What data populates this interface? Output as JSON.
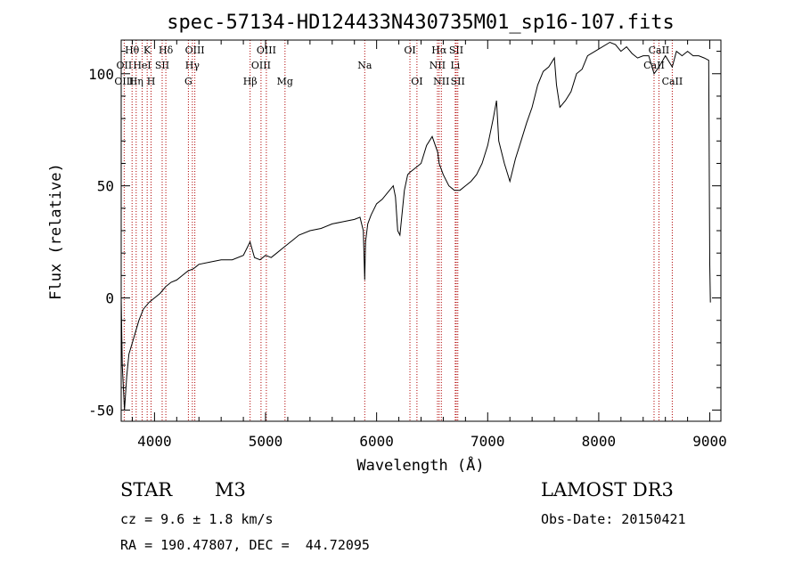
{
  "chart_data": {
    "type": "line",
    "title": "spec-57134-HD124433N430735M01_sp16-107.fits",
    "xlabel": "Wavelength (Å)",
    "ylabel": "Flux (relative)",
    "xlim": [
      3700,
      9100
    ],
    "ylim": [
      -55,
      115
    ],
    "x_ticks": [
      4000,
      5000,
      6000,
      7000,
      8000,
      9000
    ],
    "y_ticks": [
      -50,
      0,
      50,
      100
    ],
    "series": [
      {
        "name": "flux",
        "x": [
          3700,
          3710,
          3730,
          3750,
          3770,
          3800,
          3830,
          3860,
          3900,
          3950,
          4000,
          4050,
          4100,
          4150,
          4200,
          4250,
          4300,
          4350,
          4400,
          4500,
          4600,
          4700,
          4800,
          4860,
          4900,
          4950,
          5000,
          5050,
          5100,
          5150,
          5200,
          5250,
          5300,
          5400,
          5500,
          5600,
          5700,
          5800,
          5850,
          5880,
          5893,
          5900,
          5920,
          5950,
          6000,
          6050,
          6100,
          6150,
          6170,
          6190,
          6210,
          6250,
          6280,
          6300,
          6350,
          6400,
          6450,
          6500,
          6550,
          6563,
          6600,
          6650,
          6700,
          6750,
          6800,
          6850,
          6900,
          6950,
          7000,
          7050,
          7080,
          7100,
          7150,
          7200,
          7250,
          7300,
          7350,
          7400,
          7450,
          7500,
          7550,
          7600,
          7620,
          7650,
          7700,
          7750,
          7800,
          7850,
          7900,
          8000,
          8100,
          8150,
          8200,
          8250,
          8300,
          8350,
          8400,
          8450,
          8498,
          8542,
          8600,
          8662,
          8700,
          8750,
          8800,
          8850,
          8900,
          8950,
          8990,
          9000,
          9005
        ],
        "y": [
          0,
          -30,
          -50,
          -35,
          -25,
          -20,
          -15,
          -10,
          -5,
          -2,
          0,
          2,
          5,
          7,
          8,
          10,
          12,
          13,
          15,
          16,
          17,
          17,
          19,
          25,
          18,
          17,
          19,
          18,
          20,
          22,
          24,
          26,
          28,
          30,
          31,
          33,
          34,
          35,
          36,
          30,
          8,
          25,
          33,
          37,
          42,
          44,
          47,
          50,
          45,
          30,
          28,
          48,
          55,
          56,
          58,
          60,
          68,
          72,
          65,
          60,
          55,
          50,
          48,
          48,
          50,
          52,
          55,
          60,
          68,
          80,
          88,
          70,
          60,
          52,
          62,
          70,
          78,
          85,
          95,
          101,
          103,
          107,
          95,
          85,
          88,
          92,
          100,
          102,
          108,
          111,
          114,
          113,
          110,
          112,
          109,
          107,
          108,
          108,
          100,
          103,
          108,
          103,
          110,
          108,
          110,
          108,
          108,
          107,
          106,
          15,
          -2
        ]
      }
    ],
    "line_markers": [
      {
        "label": "Hθ",
        "wavelength": 3798,
        "row": 0
      },
      {
        "label": "OII",
        "wavelength": 3727,
        "row": 1
      },
      {
        "label": "OIII",
        "wavelength": 3727,
        "row": 2
      },
      {
        "label": "K",
        "wavelength": 3934,
        "row": 0
      },
      {
        "label": "HeI",
        "wavelength": 3889,
        "row": 1
      },
      {
        "label": "Hη",
        "wavelength": 3835,
        "row": 2
      },
      {
        "label": "SII",
        "wavelength": 4069,
        "row": 1
      },
      {
        "label": "H",
        "wavelength": 3969,
        "row": 2
      },
      {
        "label": "Hδ",
        "wavelength": 4102,
        "row": 0
      },
      {
        "label": "OIII",
        "wavelength": 4363,
        "row": 0
      },
      {
        "label": "Hγ",
        "wavelength": 4341,
        "row": 1
      },
      {
        "label": "G",
        "wavelength": 4305,
        "row": 2
      },
      {
        "label": "Hβ",
        "wavelength": 4861,
        "row": 2
      },
      {
        "label": "OIII",
        "wavelength": 5007,
        "row": 0
      },
      {
        "label": "OIII",
        "wavelength": 4959,
        "row": 1
      },
      {
        "label": "Mg",
        "wavelength": 5175,
        "row": 2
      },
      {
        "label": "Na",
        "wavelength": 5893,
        "row": 1
      },
      {
        "label": "OI",
        "wavelength": 6300,
        "row": 0
      },
      {
        "label": "OI",
        "wavelength": 6363,
        "row": 2
      },
      {
        "label": "Hα",
        "wavelength": 6563,
        "row": 0
      },
      {
        "label": "SII",
        "wavelength": 6717,
        "row": 0
      },
      {
        "label": "NII",
        "wavelength": 6548,
        "row": 1
      },
      {
        "label": "Li",
        "wavelength": 6708,
        "row": 1
      },
      {
        "label": "NII",
        "wavelength": 6583,
        "row": 2
      },
      {
        "label": "SII",
        "wavelength": 6731,
        "row": 2
      },
      {
        "label": "CaII",
        "wavelength": 8542,
        "row": 0
      },
      {
        "label": "CaII",
        "wavelength": 8498,
        "row": 1
      },
      {
        "label": "CaII",
        "wavelength": 8662,
        "row": 2
      }
    ]
  },
  "info": {
    "object_class": "STAR",
    "subclass": "M3",
    "survey": "LAMOST DR3",
    "redshift_line": "cz = 9.6 ± 1.8 km/s",
    "obs_date_line": "Obs-Date: 20150421",
    "coords_line": "RA = 190.47807, DEC =  44.72095"
  }
}
